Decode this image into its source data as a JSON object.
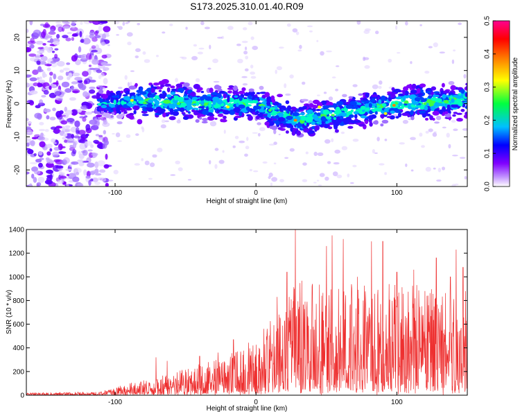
{
  "title": "S173.2025.310.01.40.R09",
  "spectrogram": {
    "type": "heatmap",
    "xlabel": "Height of straight line (km)",
    "ylabel": "Frequency (Hz)",
    "xlim": [
      -163,
      150
    ],
    "ylim": [
      -25,
      25
    ],
    "xticks": [
      -100,
      0,
      100
    ],
    "yticks": [
      -20,
      -10,
      0,
      10,
      20
    ],
    "colorbar": {
      "label": "Normalized spectral amplitude",
      "range": [
        0.0,
        0.5
      ],
      "ticks": [
        "0.0",
        "0.1",
        "0.2",
        "0.3",
        "0.4",
        "0.5"
      ],
      "colors": [
        "#ffffff",
        "#8000ff",
        "#0000ff",
        "#00d0ff",
        "#00ff40",
        "#ffff00",
        "#ff8000",
        "#ff0000",
        "#ff0090"
      ]
    },
    "band": [
      {
        "x": -105,
        "center": 0,
        "halfwidth": 4
      },
      {
        "x": -80,
        "center": 1,
        "halfwidth": 6
      },
      {
        "x": -40,
        "center": 0,
        "halfwidth": 5
      },
      {
        "x": 0,
        "center": 0,
        "halfwidth": 5
      },
      {
        "x": 30,
        "center": -5,
        "halfwidth": 5
      },
      {
        "x": 60,
        "center": -3,
        "halfwidth": 5
      },
      {
        "x": 100,
        "center": 0,
        "halfwidth": 5
      },
      {
        "x": 150,
        "center": 1,
        "halfwidth": 5
      }
    ]
  },
  "snr": {
    "type": "line",
    "xlabel": "Height of straight line (km)",
    "ylabel": "SNR (10 * v/v)",
    "xlim": [
      -163,
      150
    ],
    "ylim": [
      0,
      1400
    ],
    "xticks": [
      -100,
      0,
      100
    ],
    "yticks": [
      0,
      200,
      400,
      600,
      800,
      1000,
      1200,
      1400
    ],
    "color": "#ee3030",
    "envelope": [
      {
        "x": -163,
        "y": 20
      },
      {
        "x": -110,
        "y": 30
      },
      {
        "x": -90,
        "y": 100
      },
      {
        "x": -60,
        "y": 180
      },
      {
        "x": -40,
        "y": 260
      },
      {
        "x": -20,
        "y": 330
      },
      {
        "x": 0,
        "y": 480
      },
      {
        "x": 20,
        "y": 780
      },
      {
        "x": 30,
        "y": 950
      },
      {
        "x": 60,
        "y": 900
      },
      {
        "x": 100,
        "y": 950
      },
      {
        "x": 150,
        "y": 850
      }
    ],
    "peaks": [
      {
        "x": -71,
        "y": 320
      },
      {
        "x": -63,
        "y": 290
      },
      {
        "x": -40,
        "y": 330
      },
      {
        "x": -27,
        "y": 360
      },
      {
        "x": -16,
        "y": 470
      },
      {
        "x": 15,
        "y": 830
      },
      {
        "x": 22,
        "y": 1040
      },
      {
        "x": 28,
        "y": 1400
      },
      {
        "x": 40,
        "y": 940
      },
      {
        "x": 50,
        "y": 1260
      },
      {
        "x": 54,
        "y": 1350
      },
      {
        "x": 62,
        "y": 1320
      },
      {
        "x": 72,
        "y": 1000
      },
      {
        "x": 82,
        "y": 1300
      },
      {
        "x": 90,
        "y": 1300
      },
      {
        "x": 100,
        "y": 1040
      },
      {
        "x": 112,
        "y": 1060
      },
      {
        "x": 120,
        "y": 880
      },
      {
        "x": 128,
        "y": 1160
      },
      {
        "x": 138,
        "y": 1000
      },
      {
        "x": 142,
        "y": 1230
      },
      {
        "x": 147,
        "y": 1080
      }
    ]
  }
}
